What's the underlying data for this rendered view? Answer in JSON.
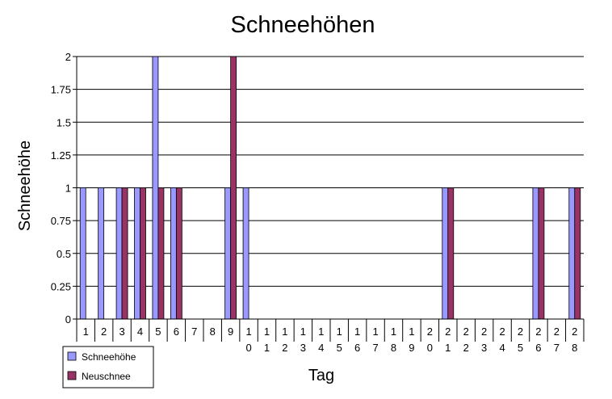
{
  "chart_data": {
    "type": "bar",
    "title": "Schneehöhen",
    "xlabel": "Tag",
    "ylabel": "Schneehöhe",
    "ylim": [
      0,
      2
    ],
    "yticks": [
      "0",
      "0.25",
      "0.5",
      "0.75",
      "1",
      "1.25",
      "1.5",
      "1.75",
      "2"
    ],
    "categories": [
      "1",
      "2",
      "3",
      "4",
      "5",
      "6",
      "7",
      "8",
      "9",
      "10",
      "11",
      "12",
      "13",
      "14",
      "15",
      "16",
      "17",
      "18",
      "19",
      "20",
      "21",
      "22",
      "23",
      "24",
      "25",
      "26",
      "27",
      "28"
    ],
    "series": [
      {
        "name": "Schneehöhe",
        "color": "#9999ff",
        "values": [
          1,
          1,
          1,
          1,
          2,
          1,
          0,
          0,
          1,
          1,
          0,
          0,
          0,
          0,
          0,
          0,
          0,
          0,
          0,
          0,
          1,
          0,
          0,
          0,
          0,
          1,
          0,
          1
        ]
      },
      {
        "name": "Neuschnee",
        "color": "#993366",
        "values": [
          0,
          0,
          1,
          1,
          1,
          1,
          0,
          0,
          2,
          0,
          0,
          0,
          0,
          0,
          0,
          0,
          0,
          0,
          0,
          0,
          1,
          0,
          0,
          0,
          0,
          1,
          0,
          1
        ]
      }
    ],
    "grid": true,
    "legend": "bottom-left"
  }
}
